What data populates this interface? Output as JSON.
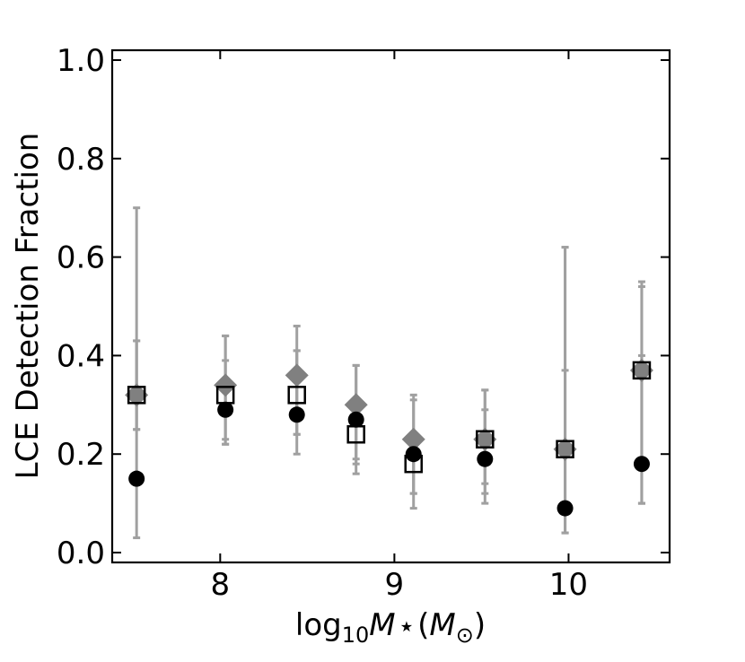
{
  "chart_data": {
    "type": "scatter",
    "title": "",
    "xlabel": "log10M★ (M⊙)",
    "ylabel": "LCE Detection Fraction",
    "xlim": [
      7.38,
      10.58
    ],
    "ylim": [
      -0.02,
      1.02
    ],
    "xticks": [
      8,
      9,
      10
    ],
    "xtick_labels": [
      "8",
      "9",
      "10"
    ],
    "yticks": [
      0.0,
      0.2,
      0.4,
      0.6,
      0.8,
      1.0
    ],
    "ytick_labels": [
      "0.0",
      "0.2",
      "0.4",
      "0.6",
      "0.8",
      "1.0"
    ],
    "grid": false,
    "legend": "none",
    "colors": {
      "gray": "#808080",
      "errorbar": "#a0a0a0",
      "black": "#000000"
    },
    "series": [
      {
        "marker": "diamond",
        "color": "#808080",
        "x": [
          7.52,
          8.03,
          8.44,
          8.78,
          9.11,
          9.52,
          9.98,
          10.42
        ],
        "y": [
          0.32,
          0.34,
          0.36,
          0.3,
          0.23,
          0.23,
          0.21,
          0.37
        ],
        "err_low": [
          0.07,
          0.12,
          0.12,
          0.11,
          0.11,
          0.11,
          0.17,
          0.27
        ],
        "err_high": [
          0.11,
          0.1,
          0.1,
          0.08,
          0.08,
          0.1,
          0.41,
          0.18
        ]
      },
      {
        "marker": "open-square",
        "color": "#000000",
        "x": [
          7.52,
          8.03,
          8.44,
          8.78,
          9.11,
          9.52,
          9.98,
          10.42
        ],
        "y": [
          0.32,
          0.32,
          0.32,
          0.24,
          0.18,
          0.23,
          0.21,
          0.37
        ],
        "err_low": [
          0.07,
          0.1,
          0.08,
          0.06,
          0.06,
          0.09,
          0.17,
          0.27
        ],
        "err_high": [
          0.11,
          0.07,
          0.09,
          0.04,
          0.05,
          0.06,
          0.16,
          0.03
        ]
      },
      {
        "marker": "filled-circle",
        "color": "#000000",
        "x": [
          7.52,
          8.03,
          8.44,
          8.78,
          9.11,
          9.52,
          9.98,
          10.42
        ],
        "y": [
          0.15,
          0.29,
          0.28,
          0.27,
          0.2,
          0.19,
          0.09,
          0.18
        ],
        "err_low": [
          0.12,
          0.06,
          0.08,
          0.11,
          0.11,
          0.09,
          0.05,
          0.08
        ],
        "err_high": [
          0.55,
          0.15,
          0.13,
          0.11,
          0.12,
          0.14,
          0.53,
          0.36
        ]
      }
    ]
  }
}
